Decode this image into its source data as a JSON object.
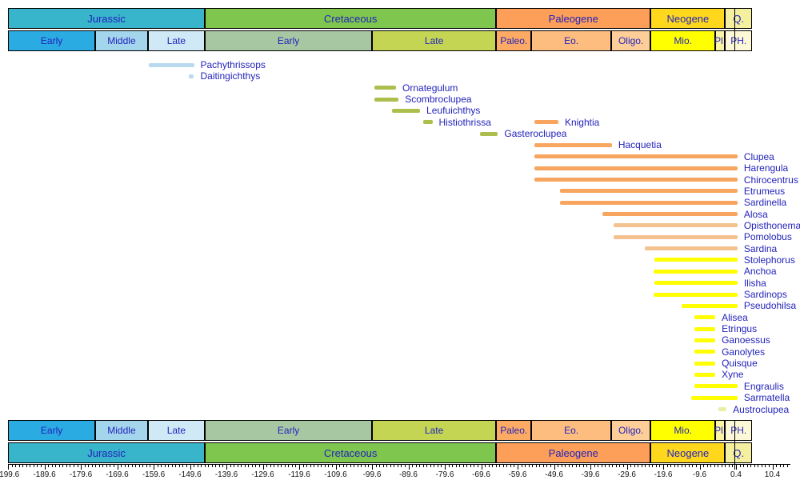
{
  "figure": {
    "background": "#ffffff",
    "text_color": "#2323bb"
  },
  "colors": {
    "bar": {
      "lightblue": "#b8d9ee",
      "olive": "#aebe4d",
      "orange": "#f7a55f",
      "lightorange": "#f3c28e",
      "yellow": "#ffff00",
      "pale": "#e9eda5"
    }
  },
  "time_scale": {
    "periods": [
      {
        "name": "Jurassic",
        "start": -199.6,
        "end": -145.5,
        "color": "#38b4cb"
      },
      {
        "name": "Cretaceous",
        "start": -145.5,
        "end": -65.5,
        "color": "#7fc64e"
      },
      {
        "name": "Paleogene",
        "start": -65.5,
        "end": -23.03,
        "color": "#fd9f58"
      },
      {
        "name": "Neogene",
        "start": -23.03,
        "end": -2.59,
        "color": "#ffd81e"
      },
      {
        "name": "Q.",
        "start": -2.59,
        "end": 4.8,
        "color": "#f4f0a0"
      }
    ],
    "epochs": [
      {
        "name": "Early",
        "start": -199.6,
        "end": -175.6,
        "color": "#2aabe2"
      },
      {
        "name": "Middle",
        "start": -175.6,
        "end": -161.2,
        "color": "#a3d6ec"
      },
      {
        "name": "Late",
        "start": -161.2,
        "end": -145.5,
        "color": "#d0e9f7"
      },
      {
        "name": "Early",
        "start": -145.5,
        "end": -99.6,
        "color": "#a7c7a3"
      },
      {
        "name": "Late",
        "start": -99.6,
        "end": -65.5,
        "color": "#c4d553"
      },
      {
        "name": "Paleo.",
        "start": -65.5,
        "end": -55.8,
        "color": "#fdaa64"
      },
      {
        "name": "Eo.",
        "start": -55.8,
        "end": -33.9,
        "color": "#fcbd7f"
      },
      {
        "name": "Oligo.",
        "start": -33.9,
        "end": -23.03,
        "color": "#fdce98"
      },
      {
        "name": "Mio.",
        "start": -23.03,
        "end": -5.33,
        "color": "#ffff00"
      },
      {
        "name": "Pl.",
        "start": -5.33,
        "end": -2.59,
        "color": "#fbf3a6"
      },
      {
        "name": "PH.",
        "start": -2.59,
        "end": 4.8,
        "color": "#fdf9d6"
      }
    ]
  },
  "chart_data": {
    "type": "bar",
    "variant": "horizontal taxon range chart (fossil ranges, Ma)",
    "x_unit": "million years",
    "xlim": [
      -199.6,
      17.5
    ],
    "present_line_t": 0,
    "axis": {
      "tick_start": -199.6,
      "tick_step": 10,
      "minor_step": 1,
      "labels": [
        "-199.6",
        "-189.6",
        "-179.6",
        "-169.6",
        "-159.6",
        "-149.6",
        "-139.6",
        "-129.6",
        "-119.6",
        "-109.6",
        "-99.6",
        "-89.6",
        "-79.6",
        "-69.6",
        "-59.6",
        "-49.6",
        "-39.6",
        "-29.6",
        "-19.6",
        "-9.6",
        "0.4",
        "10.4"
      ]
    },
    "series": [
      {
        "name": "Pachythrissops",
        "row": 0,
        "start": -161,
        "end": -148.5,
        "color": "lightblue"
      },
      {
        "name": "Daitingichthys",
        "row": 1,
        "start": -150,
        "end": -148.5,
        "color": "lightblue"
      },
      {
        "name": "Ornategulum",
        "row": 2,
        "start": -99,
        "end": -93,
        "color": "olive"
      },
      {
        "name": "Scombroclupea",
        "row": 3,
        "start": -99,
        "end": -92.3,
        "color": "olive"
      },
      {
        "name": "Leufuichthys",
        "row": 4,
        "start": -94,
        "end": -86.4,
        "color": "olive"
      },
      {
        "name": "Histiothrissa",
        "row": 5,
        "start": -85.5,
        "end": -83,
        "color": "olive"
      },
      {
        "name": "Knightia",
        "row": 5,
        "start": -55,
        "end": -48.4,
        "color": "orange"
      },
      {
        "name": "Gasteroclupea",
        "row": 6,
        "start": -70,
        "end": -65,
        "color": "olive"
      },
      {
        "name": "Hacquetia",
        "row": 7,
        "start": -55,
        "end": -33.7,
        "color": "orange"
      },
      {
        "name": "Clupea",
        "row": 8,
        "start": -55,
        "end": 0.8,
        "color": "orange"
      },
      {
        "name": "Harengula",
        "row": 9,
        "start": -55,
        "end": 0.8,
        "color": "orange"
      },
      {
        "name": "Chirocentrus",
        "row": 10,
        "start": -55,
        "end": 0.8,
        "color": "orange"
      },
      {
        "name": "Etrumeus",
        "row": 11,
        "start": -48,
        "end": 0.8,
        "color": "orange"
      },
      {
        "name": "Sardinella",
        "row": 12,
        "start": -48,
        "end": 0.8,
        "color": "orange"
      },
      {
        "name": "Alosa",
        "row": 13,
        "start": -36.3,
        "end": 0.8,
        "color": "orange"
      },
      {
        "name": "Opisthonema",
        "row": 14,
        "start": -33.2,
        "end": 0.8,
        "color": "lightorange"
      },
      {
        "name": "Pomolobus",
        "row": 15,
        "start": -33.2,
        "end": 0.8,
        "color": "lightorange"
      },
      {
        "name": "Sardina",
        "row": 16,
        "start": -24.6,
        "end": 0.8,
        "color": "lightorange"
      },
      {
        "name": "Stolephorus",
        "row": 17,
        "start": -22,
        "end": 0.8,
        "color": "yellow"
      },
      {
        "name": "Anchoa",
        "row": 18,
        "start": -22.3,
        "end": 0.8,
        "color": "yellow"
      },
      {
        "name": "Ilisha",
        "row": 19,
        "start": -22,
        "end": 0.8,
        "color": "yellow"
      },
      {
        "name": "Sardinops",
        "row": 20,
        "start": -22.3,
        "end": 0.8,
        "color": "yellow"
      },
      {
        "name": "Pseudohilsa",
        "row": 21,
        "start": -14.5,
        "end": 0.8,
        "color": "yellow"
      },
      {
        "name": "Alisea",
        "row": 22,
        "start": -11,
        "end": -5.3,
        "color": "yellow"
      },
      {
        "name": "Etringus",
        "row": 23,
        "start": -11,
        "end": -5.3,
        "color": "yellow"
      },
      {
        "name": "Ganoessus",
        "row": 24,
        "start": -11,
        "end": -5.3,
        "color": "yellow"
      },
      {
        "name": "Ganolytes",
        "row": 25,
        "start": -11,
        "end": -5.3,
        "color": "yellow"
      },
      {
        "name": "Quisque",
        "row": 26,
        "start": -11,
        "end": -5.3,
        "color": "yellow"
      },
      {
        "name": "Xyne",
        "row": 27,
        "start": -11,
        "end": -5.3,
        "color": "yellow"
      },
      {
        "name": "Engraulis",
        "row": 28,
        "start": -11,
        "end": 0.8,
        "color": "yellow"
      },
      {
        "name": "Sarmatella",
        "row": 29,
        "start": -12,
        "end": 0.8,
        "color": "yellow"
      },
      {
        "name": "Austroclupea",
        "row": 30,
        "start": -4.4,
        "end": -2.2,
        "color": "pale"
      }
    ]
  }
}
